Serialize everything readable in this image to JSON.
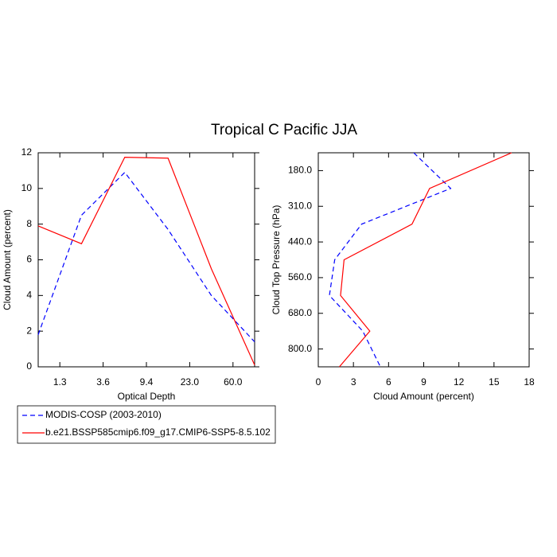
{
  "chart_data": [
    {
      "type": "line",
      "orientation": "vertical",
      "title": "Tropical C Pacific JJA",
      "xlabel": "Optical Depth",
      "ylabel": "Cloud Amount (percent)",
      "x": [
        0,
        1,
        2,
        3,
        4,
        5
      ],
      "xlim": [
        0,
        5
      ],
      "xticks": [
        {
          "value": 0.5,
          "label": "1.3"
        },
        {
          "value": 1.5,
          "label": "3.6"
        },
        {
          "value": 2.5,
          "label": "9.4"
        },
        {
          "value": 3.5,
          "label": "23.0"
        },
        {
          "value": 4.5,
          "label": "60.0"
        }
      ],
      "ylim": [
        0,
        12
      ],
      "yticks": [
        0,
        2,
        4,
        6,
        8,
        10,
        12
      ],
      "series": [
        {
          "name": "MODIS-COSP (2003-2010)",
          "color": "#0000ff",
          "dash": true,
          "values": [
            1.8,
            8.5,
            10.9,
            7.7,
            4.0,
            1.4
          ]
        },
        {
          "name": "b.e21.BSSP585cmip6.f09_g17.CMIP6-SSP5-8.5.102",
          "color": "#ff0000",
          "dash": false,
          "values": [
            7.9,
            6.9,
            11.75,
            11.7,
            5.5,
            0.1
          ]
        }
      ]
    },
    {
      "type": "line",
      "orientation": "horizontal",
      "xlabel": "Cloud Amount (percent)",
      "ylabel": "Cloud Top Pressure (hPa)",
      "xlim": [
        0,
        18
      ],
      "xticks": [
        0,
        3,
        6,
        9,
        12,
        15,
        18
      ],
      "y": [
        0,
        1,
        2,
        3,
        4,
        5,
        6
      ],
      "ylim": [
        6,
        0
      ],
      "yticks": [
        {
          "value": 0.5,
          "label": "180.0"
        },
        {
          "value": 1.5,
          "label": "310.0"
        },
        {
          "value": 2.5,
          "label": "440.0"
        },
        {
          "value": 3.5,
          "label": "560.0"
        },
        {
          "value": 4.5,
          "label": "680.0"
        },
        {
          "value": 5.5,
          "label": "800.0"
        }
      ],
      "series": [
        {
          "color": "#0000ff",
          "dash": true,
          "values": [
            8.15,
            11.3,
            3.7,
            1.4,
            0.95,
            3.8,
            5.3
          ]
        },
        {
          "color": "#ff0000",
          "dash": false,
          "values": [
            16.5,
            9.5,
            8.0,
            2.2,
            1.9,
            4.4,
            1.8
          ]
        }
      ]
    }
  ]
}
